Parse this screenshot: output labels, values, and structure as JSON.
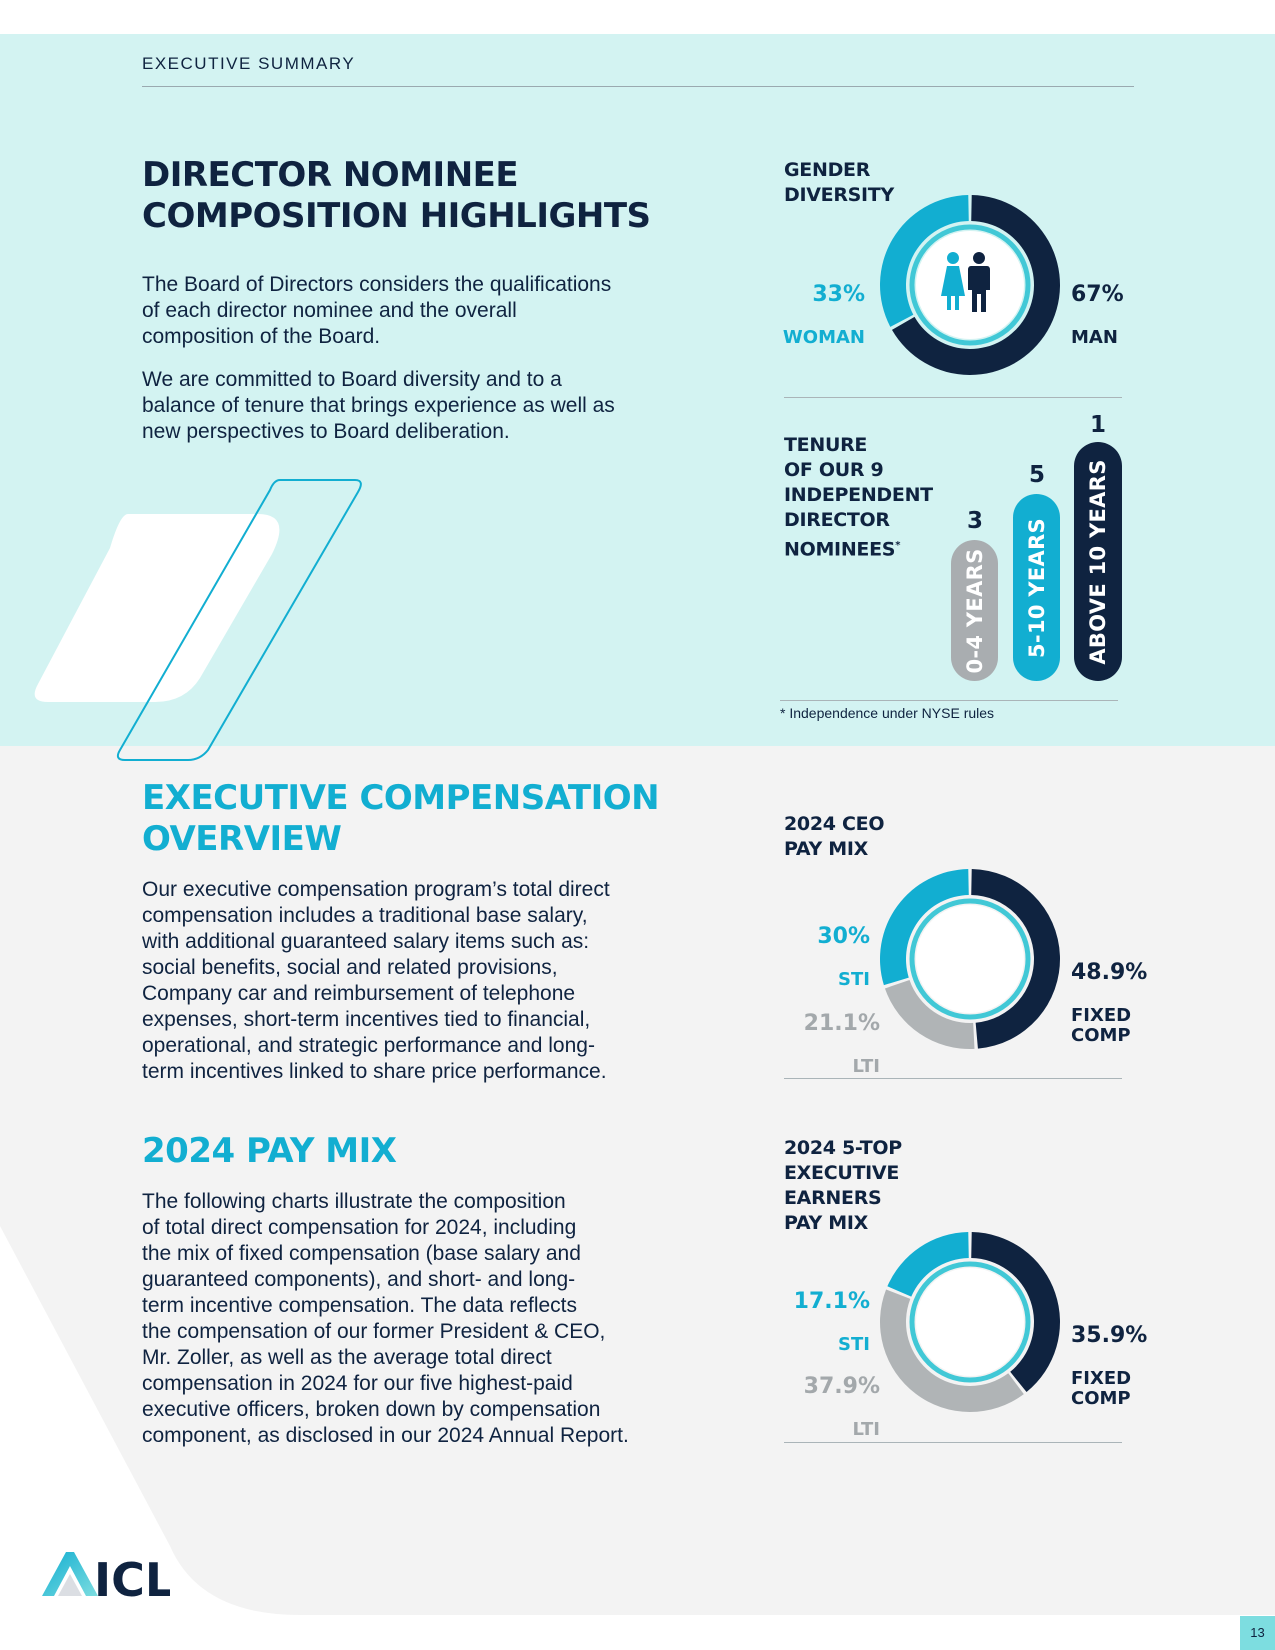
{
  "header": {
    "section_label": "EXECUTIVE SUMMARY"
  },
  "director": {
    "title": "DIRECTOR NOMINEE\nCOMPOSITION HIGHLIGHTS",
    "paragraph1": "The Board of Directors considers the qualifications\nof each director nominee and the overall\ncomposition of the Board.",
    "paragraph2": "We are committed to Board diversity and to a\nbalance of tenure that brings experience as well as\nnew perspectives to Board deliberation."
  },
  "gender_chart": {
    "title": "GENDER\nDIVERSITY",
    "woman_pct": "33%",
    "woman_label": "WOMAN",
    "man_pct": "67%",
    "man_label": "MAN",
    "icon": "people-icon"
  },
  "tenure_chart": {
    "title": "TENURE\nOF OUR 9\nINDEPENDENT\nDIRECTOR\nNOMINEES",
    "footnote_marker": "*",
    "bars": [
      {
        "label": "0-4 YEARS",
        "count": "3",
        "value": 3,
        "color": "#a9adb0"
      },
      {
        "label": "5-10 YEARS",
        "count": "5",
        "value": 5,
        "color": "#12aed1"
      },
      {
        "label": "ABOVE 10 YEARS",
        "count": "1",
        "value": 1,
        "color": "#0f2340"
      }
    ],
    "footnote": "* Independence under NYSE rules"
  },
  "compensation": {
    "title": "EXECUTIVE COMPENSATION\nOVERVIEW",
    "paragraph": "Our executive compensation program’s total direct\ncompensation includes a traditional base salary,\nwith additional guaranteed salary items such as:\nsocial benefits, social and related provisions,\nCompany car and reimbursement of telephone\nexpenses, short-term incentives tied to financial,\noperational, and strategic performance and long-\nterm incentives linked to share price performance."
  },
  "pay_mix": {
    "title": "2024 PAY MIX",
    "paragraph": "The following charts illustrate the composition\nof total direct compensation for 2024, including\nthe mix of fixed compensation (base salary and\nguaranteed components), and short- and long-\nterm incentive compensation. The data reflects\nthe compensation of our former President & CEO,\nMr. Zoller, as well as the average total direct\ncompensation in 2024 for our five highest-paid\nexecutive officers, broken down by compensation\ncomponent, as disclosed in our 2024 Annual Report."
  },
  "ceo_chart": {
    "title": "2024 CEO\nPAY MIX",
    "sti_pct": "30%",
    "sti_label": "STI",
    "lti_pct": "21.1%",
    "lti_label": "LTI",
    "fixed_pct": "48.9%",
    "fixed_label": "FIXED\nCOMP"
  },
  "top5_chart": {
    "title": "2024 5-TOP\nEXECUTIVE\nEARNERS\nPAY MIX",
    "sti_pct": "17.1%",
    "sti_label": "STI",
    "lti_pct": "37.9%",
    "lti_label": "LTI",
    "fixed_pct": "35.9%",
    "fixed_label": "FIXED\nCOMP"
  },
  "chart_data": [
    {
      "type": "pie",
      "title": "GENDER DIVERSITY",
      "categories": [
        "WOMAN",
        "MAN"
      ],
      "values": [
        33,
        67
      ],
      "colors": [
        "#12aed1",
        "#0f2340"
      ]
    },
    {
      "type": "bar",
      "title": "TENURE OF OUR 9 INDEPENDENT DIRECTOR NOMINEES",
      "categories": [
        "0-4 YEARS",
        "5-10 YEARS",
        "ABOVE 10 YEARS"
      ],
      "values": [
        3,
        5,
        1
      ]
    },
    {
      "type": "pie",
      "title": "2024 CEO PAY MIX",
      "categories": [
        "FIXED COMP",
        "LTI",
        "STI"
      ],
      "values": [
        48.9,
        21.1,
        30
      ],
      "colors": [
        "#0f2340",
        "#b0b4b6",
        "#12aed1"
      ]
    },
    {
      "type": "pie",
      "title": "2024 5-TOP EXECUTIVE EARNERS PAY MIX",
      "categories": [
        "FIXED COMP",
        "LTI",
        "STI"
      ],
      "values": [
        35.9,
        37.9,
        17.1
      ],
      "colors": [
        "#0f2340",
        "#b0b4b6",
        "#12aed1"
      ]
    }
  ],
  "footer": {
    "logo_text": "ICL",
    "page_number": "13"
  }
}
